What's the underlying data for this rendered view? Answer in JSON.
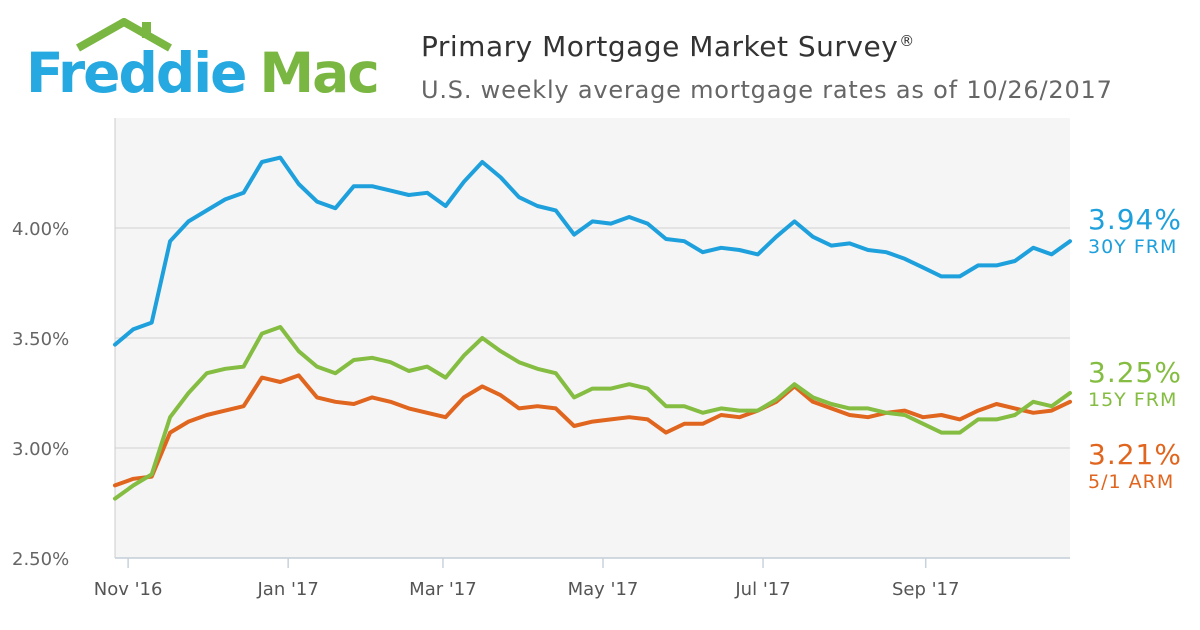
{
  "brand": {
    "word1": "Freddie",
    "word2": "Mac"
  },
  "header": {
    "title": "Primary Mortgage Market Survey",
    "title_mark": "®",
    "subtitle": "U.S. weekly average mortgage rates as of 10/26/2017"
  },
  "colors": {
    "frm30": "#1ea0dc",
    "frm15": "#84bd41",
    "arm51": "#e0651e",
    "grid": "#dddddd",
    "plot_bg": "#f5f5f5"
  },
  "chart_data": {
    "type": "line",
    "title": "Primary Mortgage Market Survey",
    "subtitle": "U.S. weekly average mortgage rates as of 10/26/2017",
    "ylim": [
      2.5,
      4.5
    ],
    "yticks": [
      2.5,
      3.0,
      3.5,
      4.0
    ],
    "ytick_labels": [
      "2.50%",
      "3.00%",
      "3.50%",
      "4.00%"
    ],
    "xticks": [
      "2016-11-01",
      "2017-01-01",
      "2017-03-01",
      "2017-05-01",
      "2017-07-01",
      "2017-09-01"
    ],
    "xtick_labels": [
      "Nov '16",
      "Jan '17",
      "Mar '17",
      "May '17",
      "Jul '17",
      "Sep '17"
    ],
    "x_start": "2016-10-27",
    "x_end": "2017-10-26",
    "grid": true,
    "legend": "end-of-line labels",
    "series": [
      {
        "name": "30Y FRM",
        "end_label": "3.94%",
        "values": [
          3.47,
          3.54,
          3.57,
          3.94,
          4.03,
          4.08,
          4.13,
          4.16,
          4.3,
          4.32,
          4.2,
          4.12,
          4.09,
          4.19,
          4.19,
          4.17,
          4.15,
          4.16,
          4.1,
          4.21,
          4.3,
          4.23,
          4.14,
          4.1,
          4.08,
          3.97,
          4.03,
          4.02,
          4.05,
          4.02,
          3.95,
          3.94,
          3.89,
          3.91,
          3.9,
          3.88,
          3.96,
          4.03,
          3.96,
          3.92,
          3.93,
          3.9,
          3.89,
          3.86,
          3.82,
          3.78,
          3.78,
          3.83,
          3.83,
          3.85,
          3.91,
          3.88,
          3.94
        ]
      },
      {
        "name": "15Y FRM",
        "end_label": "3.25%",
        "values": [
          2.77,
          2.83,
          2.88,
          3.14,
          3.25,
          3.34,
          3.36,
          3.37,
          3.52,
          3.55,
          3.44,
          3.37,
          3.34,
          3.4,
          3.41,
          3.39,
          3.35,
          3.37,
          3.32,
          3.42,
          3.5,
          3.44,
          3.39,
          3.36,
          3.34,
          3.23,
          3.27,
          3.27,
          3.29,
          3.27,
          3.19,
          3.19,
          3.16,
          3.18,
          3.17,
          3.17,
          3.22,
          3.29,
          3.23,
          3.2,
          3.18,
          3.18,
          3.16,
          3.15,
          3.11,
          3.07,
          3.07,
          3.13,
          3.13,
          3.15,
          3.21,
          3.19,
          3.25
        ]
      },
      {
        "name": "5/1 ARM",
        "end_label": "3.21%",
        "values": [
          2.83,
          2.86,
          2.87,
          3.07,
          3.12,
          3.15,
          3.17,
          3.19,
          3.32,
          3.3,
          3.33,
          3.23,
          3.21,
          3.2,
          3.23,
          3.21,
          3.18,
          3.16,
          3.14,
          3.23,
          3.28,
          3.24,
          3.18,
          3.19,
          3.18,
          3.1,
          3.12,
          3.13,
          3.14,
          3.13,
          3.07,
          3.11,
          3.11,
          3.15,
          3.14,
          3.17,
          3.21,
          3.28,
          3.21,
          3.18,
          3.15,
          3.14,
          3.16,
          3.17,
          3.14,
          3.15,
          3.13,
          3.17,
          3.2,
          3.18,
          3.16,
          3.17,
          3.21
        ]
      }
    ]
  }
}
